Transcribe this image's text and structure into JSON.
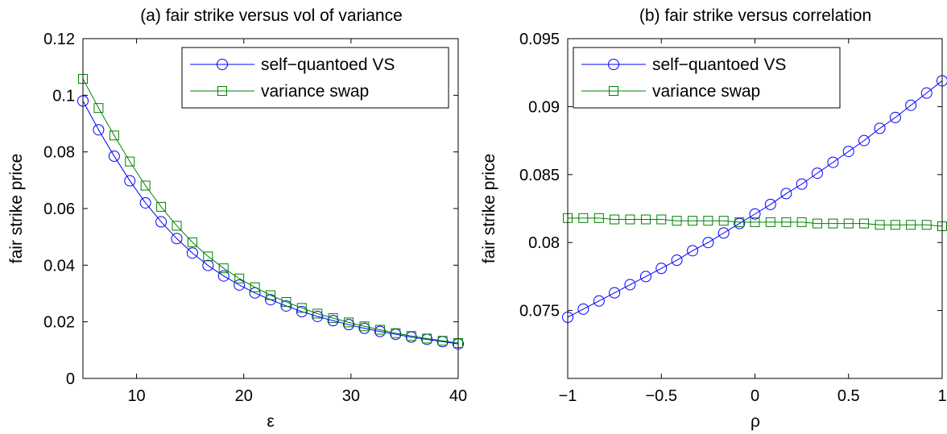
{
  "chart_data": [
    {
      "type": "line",
      "title": "(a) fair strike versus vol of variance",
      "xlabel": "ε",
      "ylabel": "fair strike price",
      "xlim": [
        5,
        40
      ],
      "ylim": [
        0,
        0.12
      ],
      "xticks": [
        10,
        20,
        30,
        40
      ],
      "yticks": [
        0,
        0.02,
        0.04,
        0.06,
        0.08,
        0.1,
        0.12
      ],
      "xtick_labels": [
        "10",
        "20",
        "30",
        "40"
      ],
      "ytick_labels": [
        "0",
        "0.02",
        "0.04",
        "0.06",
        "0.08",
        "0.1",
        "0.12"
      ],
      "legend_position": "top-right",
      "x": [
        5,
        6.458,
        7.917,
        9.375,
        10.833,
        12.292,
        13.75,
        15.208,
        16.667,
        18.125,
        19.583,
        21.042,
        22.5,
        23.958,
        25.417,
        26.875,
        28.333,
        29.792,
        31.25,
        32.708,
        34.167,
        35.625,
        37.083,
        38.542,
        40
      ],
      "series": [
        {
          "name": "self−quantoed VS",
          "color": "#0000ff",
          "marker": "circle",
          "values": [
            0.098,
            0.0878,
            0.0785,
            0.0698,
            0.062,
            0.0553,
            0.0494,
            0.0443,
            0.0399,
            0.0362,
            0.033,
            0.0302,
            0.0278,
            0.0256,
            0.0236,
            0.0219,
            0.0204,
            0.019,
            0.0177,
            0.0166,
            0.0156,
            0.0146,
            0.0138,
            0.013,
            0.0122
          ]
        },
        {
          "name": "variance swap",
          "color": "#008000",
          "marker": "square",
          "values": [
            0.1058,
            0.0955,
            0.0858,
            0.0766,
            0.0681,
            0.0606,
            0.0539,
            0.0481,
            0.0431,
            0.0389,
            0.0353,
            0.0322,
            0.0294,
            0.027,
            0.0249,
            0.0229,
            0.0213,
            0.0198,
            0.0184,
            0.0172,
            0.016,
            0.015,
            0.0141,
            0.0133,
            0.0125
          ]
        }
      ]
    },
    {
      "type": "line",
      "title": "(b) fair strike versus correlation",
      "xlabel": "ρ",
      "ylabel": "fair strike price",
      "xlim": [
        -1,
        1
      ],
      "ylim": [
        0.07,
        0.095
      ],
      "xticks": [
        -1,
        -0.5,
        0,
        0.5,
        1
      ],
      "yticks": [
        0.075,
        0.08,
        0.085,
        0.09,
        0.095
      ],
      "xtick_labels": [
        "−1",
        "−0.5",
        "0",
        "0.5",
        "1"
      ],
      "ytick_labels": [
        "0.075",
        "0.08",
        "0.085",
        "0.09",
        "0.095"
      ],
      "legend_position": "top-left",
      "x": [
        -1,
        -0.917,
        -0.833,
        -0.75,
        -0.667,
        -0.583,
        -0.5,
        -0.417,
        -0.333,
        -0.25,
        -0.167,
        -0.083,
        0,
        0.083,
        0.167,
        0.25,
        0.333,
        0.417,
        0.5,
        0.583,
        0.667,
        0.75,
        0.833,
        0.917,
        1
      ],
      "series": [
        {
          "name": "self−quantoed VS",
          "color": "#0000ff",
          "marker": "circle",
          "values": [
            0.0745,
            0.0751,
            0.0757,
            0.0763,
            0.0769,
            0.0775,
            0.0781,
            0.0787,
            0.0794,
            0.08,
            0.0807,
            0.0814,
            0.0821,
            0.0828,
            0.0836,
            0.0843,
            0.0851,
            0.0859,
            0.0867,
            0.0875,
            0.0884,
            0.0892,
            0.0901,
            0.091,
            0.0919
          ]
        },
        {
          "name": "variance swap",
          "color": "#008000",
          "marker": "square",
          "values": [
            0.0818,
            0.0818,
            0.0818,
            0.0817,
            0.0817,
            0.0817,
            0.0817,
            0.0816,
            0.0816,
            0.0816,
            0.0816,
            0.0815,
            0.0815,
            0.0815,
            0.0815,
            0.0815,
            0.0814,
            0.0814,
            0.0814,
            0.0814,
            0.0813,
            0.0813,
            0.0813,
            0.0813,
            0.0812
          ]
        }
      ]
    }
  ]
}
